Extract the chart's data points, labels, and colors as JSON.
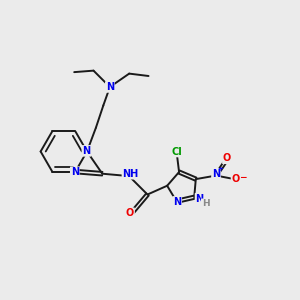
{
  "background_color": "#ebebeb",
  "bond_color": "#1a1a1a",
  "atom_colors": {
    "N": "#0000ee",
    "O": "#ee0000",
    "Cl": "#009900",
    "H": "#888888",
    "C": "#1a1a1a"
  },
  "figsize": [
    3.0,
    3.0
  ],
  "dpi": 100
}
